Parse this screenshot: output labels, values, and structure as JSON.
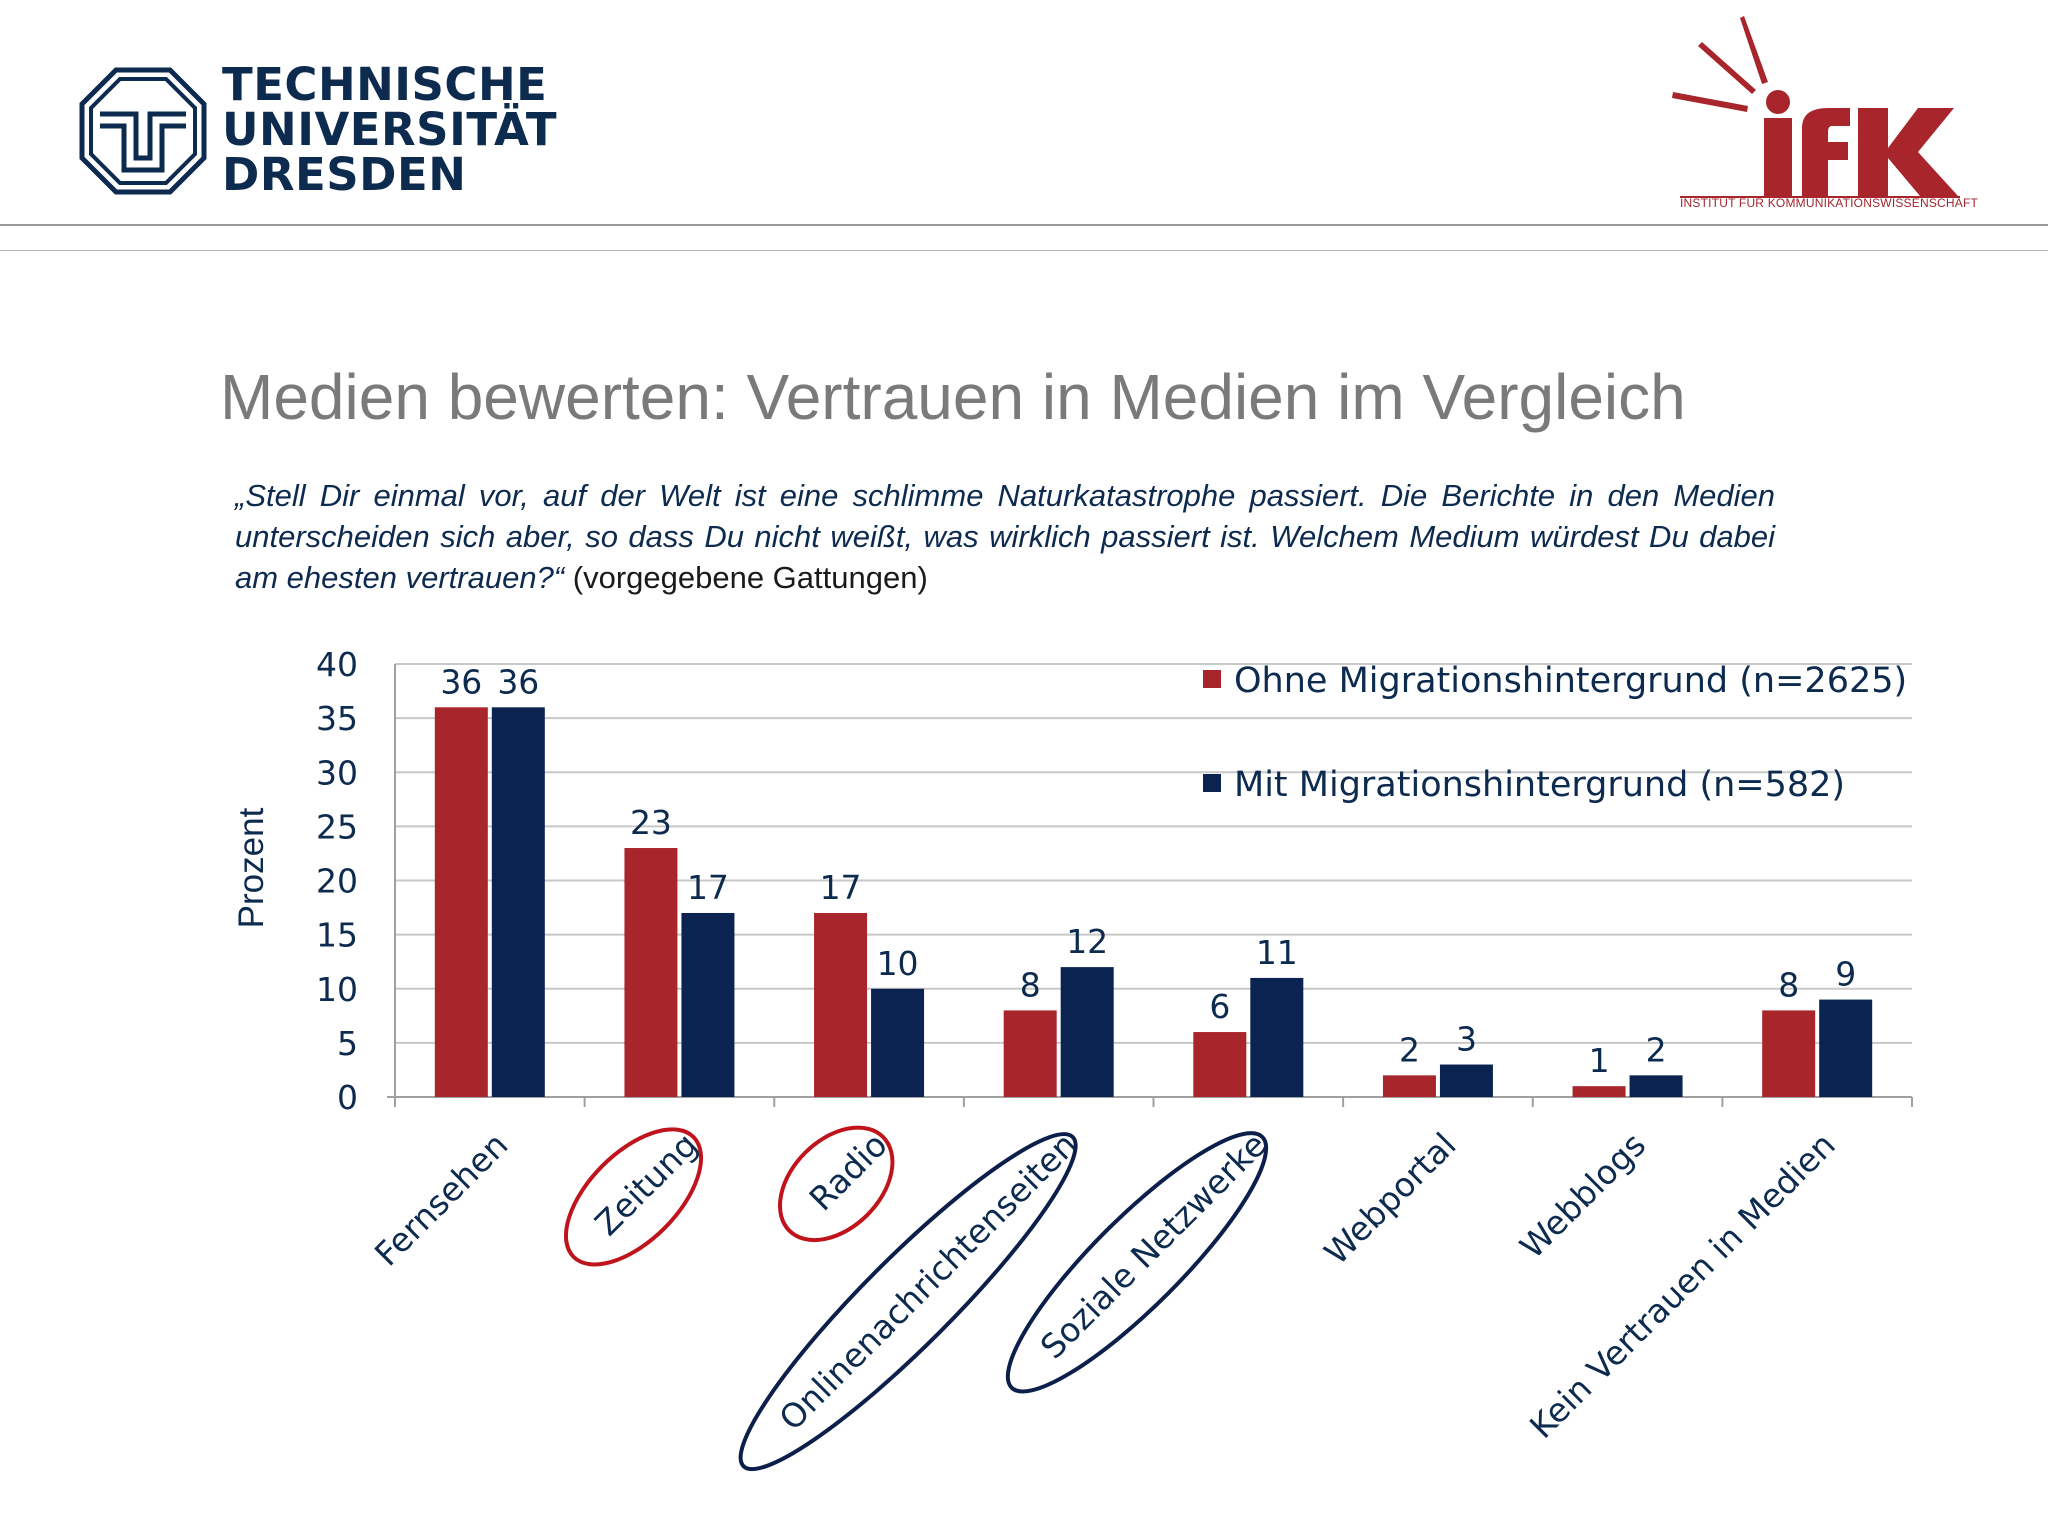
{
  "header": {
    "university_lines": [
      "TECHNISCHE",
      "UNIVERSITÄT",
      "DRESDEN"
    ],
    "institute_logo_text": "ifK",
    "institute_name": "Institut für Kommunikationswissenschaft"
  },
  "slide": {
    "title": "Medien bewerten: Vertrauen in Medien im Vergleich",
    "question_italic": "„Stell Dir einmal vor, auf der Welt ist eine schlimme Naturkatastrophe passiert. Die Berichte in den Medien unterscheiden sich aber, so dass Du nicht weißt, was wirklich passiert ist. Welchem Medium würdest Du dabei am ehesten vertrauen?“",
    "question_note": " (vorgegebene Gattungen)"
  },
  "colors": {
    "series_1": "#a8252b",
    "series_2": "#0b2350",
    "highlight_red": "#c0141c",
    "highlight_navy": "#0b1f4a",
    "grid": "#c8c8c8",
    "axis_text": "#0d2a4f"
  },
  "chart_data": {
    "type": "bar",
    "ylabel": "Prozent",
    "ylim": [
      0,
      40
    ],
    "yticks": [
      0,
      5,
      10,
      15,
      20,
      25,
      30,
      35,
      40
    ],
    "grid": true,
    "legend_position": "top-right",
    "categories": [
      "Fernsehen",
      "Zeitung",
      "Radio",
      "Onlinenachrichtenseiten",
      "Soziale Netzwerke",
      "Webportal",
      "Webblogs",
      "Kein Vertrauen in Medien"
    ],
    "series": [
      {
        "name": "Ohne Migrationshintergrund (n=2625)",
        "values": [
          36,
          23,
          17,
          8,
          6,
          2,
          1,
          8
        ]
      },
      {
        "name": "Mit Migrationshintergrund (n=582)",
        "values": [
          36,
          17,
          10,
          12,
          11,
          3,
          2,
          9
        ]
      }
    ],
    "highlighted_categories": {
      "red": [
        "Zeitung",
        "Radio"
      ],
      "navy": [
        "Onlinenachrichtenseiten",
        "Soziale Netzwerke"
      ]
    }
  }
}
